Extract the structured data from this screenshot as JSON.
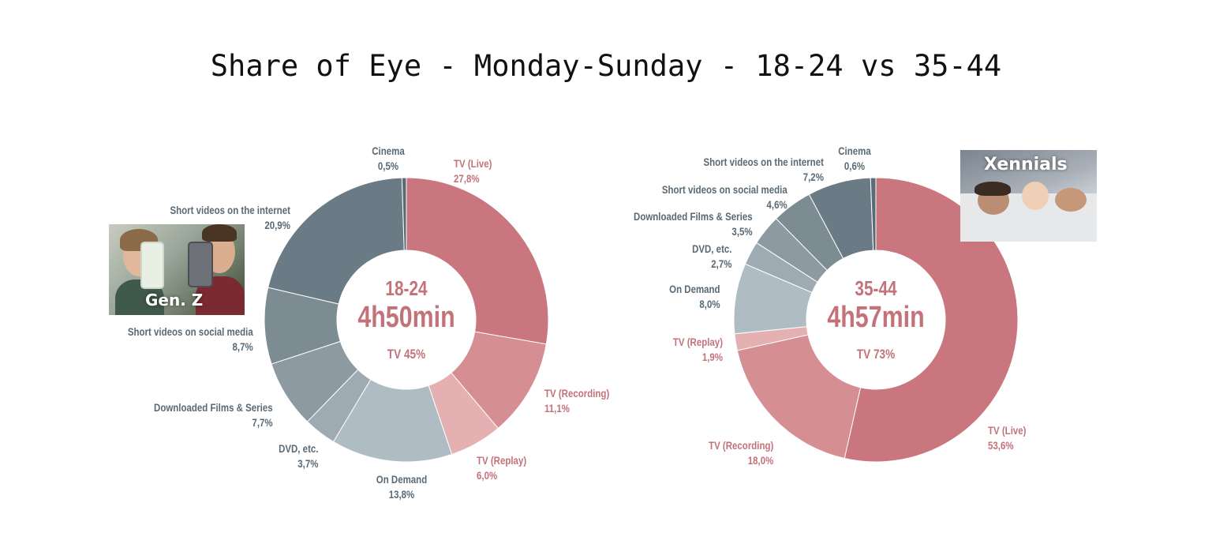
{
  "title": "Share of Eye - Monday-Sunday - 18-24 vs 35-44",
  "colors": {
    "tv_live": "#c9767e",
    "tv_recording": "#d58e92",
    "tv_replay": "#e4b0b2",
    "on_demand": "#b0bcc3",
    "dvd": "#9eabb3",
    "downloaded": "#8d9aa2",
    "short_social": "#7d8b93",
    "short_internet": "#6b7b85",
    "cinema": "#5b6b75",
    "label_red": "#c4727a",
    "label_gray": "#596a75"
  },
  "photos": {
    "genz_caption": "Gen. Z",
    "xennials_caption": "Xennials"
  },
  "chart_data": [
    {
      "type": "pie",
      "variant": "donut",
      "center": {
        "age": "18-24",
        "duration": "4h50min",
        "tv_share": "TV 45%"
      },
      "slices": [
        {
          "label": "TV (Live)",
          "value_text": "27,8%",
          "value": 27.8,
          "color_key": "tv_live"
        },
        {
          "label": "TV (Recording)",
          "value_text": "11,1%",
          "value": 11.1,
          "color_key": "tv_recording"
        },
        {
          "label": "TV (Replay)",
          "value_text": "6,0%",
          "value": 6.0,
          "color_key": "tv_replay"
        },
        {
          "label": "On Demand",
          "value_text": "13,8%",
          "value": 13.8,
          "color_key": "on_demand"
        },
        {
          "label": "DVD, etc.",
          "value_text": "3,7%",
          "value": 3.7,
          "color_key": "dvd"
        },
        {
          "label": "Downloaded Films & Series",
          "value_text": "7,7%",
          "value": 7.7,
          "color_key": "downloaded"
        },
        {
          "label": "Short videos on social media",
          "value_text": "8,7%",
          "value": 8.7,
          "color_key": "short_social"
        },
        {
          "label": "Short videos on the internet",
          "value_text": "20,9%",
          "value": 20.9,
          "color_key": "short_internet"
        },
        {
          "label": "Cinema",
          "value_text": "0,5%",
          "value": 0.5,
          "color_key": "cinema"
        }
      ]
    },
    {
      "type": "pie",
      "variant": "donut",
      "center": {
        "age": "35-44",
        "duration": "4h57min",
        "tv_share": "TV 73%"
      },
      "slices": [
        {
          "label": "TV (Live)",
          "value_text": "53,6%",
          "value": 53.6,
          "color_key": "tv_live"
        },
        {
          "label": "TV (Recording)",
          "value_text": "18,0%",
          "value": 18.0,
          "color_key": "tv_recording"
        },
        {
          "label": "TV (Replay)",
          "value_text": "1,9%",
          "value": 1.9,
          "color_key": "tv_replay"
        },
        {
          "label": "On Demand",
          "value_text": "8,0%",
          "value": 8.0,
          "color_key": "on_demand"
        },
        {
          "label": "DVD, etc.",
          "value_text": "2,7%",
          "value": 2.7,
          "color_key": "dvd"
        },
        {
          "label": "Downloaded Films & Series",
          "value_text": "3,5%",
          "value": 3.5,
          "color_key": "downloaded"
        },
        {
          "label": "Short videos on social media",
          "value_text": "4,6%",
          "value": 4.6,
          "color_key": "short_social"
        },
        {
          "label": "Short videos on the internet",
          "value_text": "7,2%",
          "value": 7.2,
          "color_key": "short_internet"
        },
        {
          "label": "Cinema",
          "value_text": "0,6%",
          "value": 0.6,
          "color_key": "cinema"
        }
      ]
    }
  ]
}
